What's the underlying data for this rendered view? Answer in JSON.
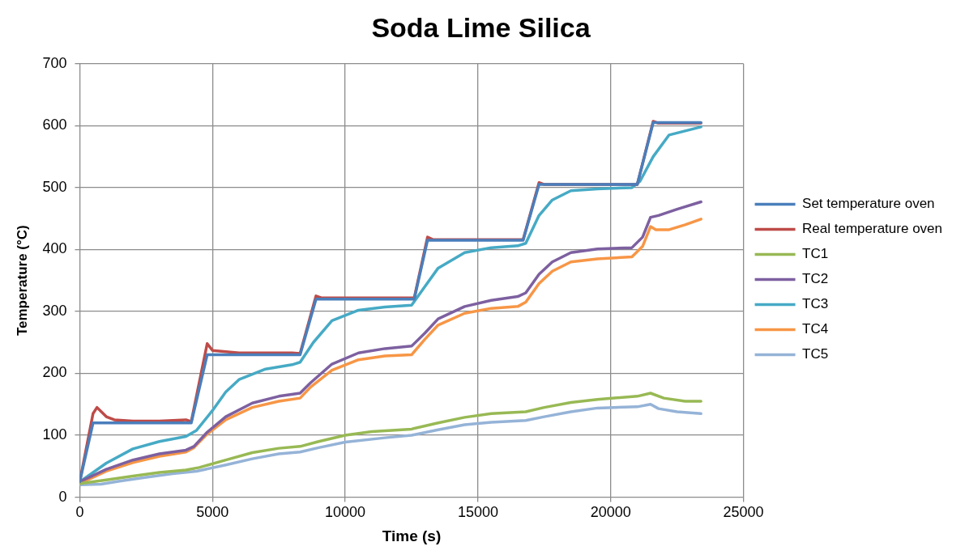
{
  "chart_data": {
    "type": "line",
    "title": "Soda Lime Silica",
    "xlabel": "Time (s)",
    "ylabel": "Temperature (°C)",
    "xlim": [
      0,
      25000
    ],
    "xticks": [
      0,
      5000,
      10000,
      15000,
      20000,
      25000
    ],
    "ylim": [
      0,
      700
    ],
    "yticks": [
      0,
      100,
      200,
      300,
      400,
      500,
      600,
      700
    ],
    "grid": true,
    "legend": "right",
    "marker": "none",
    "line_style": "solid",
    "series": [
      {
        "name": "Set temperature oven",
        "color": "#4a7ebb",
        "x": [
          0,
          500,
          4200,
          4800,
          8300,
          8900,
          12600,
          13100,
          16700,
          17300,
          21000,
          21600,
          23400
        ],
        "values": [
          25,
          120,
          120,
          230,
          230,
          320,
          320,
          415,
          415,
          505,
          505,
          605,
          605
        ]
      },
      {
        "name": "Real temperature oven",
        "color": "#be4b48",
        "x": [
          0,
          500,
          650,
          1000,
          1300,
          2000,
          3000,
          4000,
          4200,
          4800,
          5000,
          6000,
          8000,
          8300,
          8900,
          9100,
          12600,
          13100,
          13300,
          16700,
          17300,
          17500,
          21000,
          21600,
          21800,
          23400
        ],
        "values": [
          25,
          135,
          145,
          130,
          125,
          123,
          123,
          125,
          122,
          248,
          237,
          233,
          233,
          232,
          325,
          322,
          322,
          420,
          416,
          416,
          508,
          505,
          505,
          607,
          604,
          604
        ]
      },
      {
        "name": "TC1",
        "color": "#98b954",
        "x": [
          0,
          1000,
          2000,
          3000,
          4000,
          4500,
          5500,
          6500,
          7500,
          8300,
          9000,
          10000,
          11000,
          12500,
          13500,
          14500,
          15500,
          16800,
          17500,
          18500,
          19500,
          21000,
          21500,
          22000,
          22800,
          23400
        ],
        "values": [
          22,
          28,
          34,
          40,
          44,
          48,
          60,
          72,
          79,
          82,
          90,
          100,
          106,
          110,
          120,
          129,
          135,
          138,
          145,
          153,
          158,
          163,
          168,
          160,
          155,
          155
        ]
      },
      {
        "name": "TC2",
        "color": "#7d60a0",
        "x": [
          0,
          1000,
          2000,
          3000,
          4000,
          4300,
          4800,
          5500,
          6500,
          7500,
          8300,
          8700,
          9500,
          10500,
          11500,
          12500,
          13000,
          13500,
          14500,
          15500,
          16500,
          16800,
          17300,
          17800,
          18500,
          19500,
          20800,
          21200,
          21500,
          21800,
          22500,
          23400
        ],
        "values": [
          25,
          45,
          60,
          70,
          76,
          82,
          105,
          130,
          152,
          163,
          168,
          185,
          215,
          233,
          240,
          244,
          265,
          288,
          308,
          318,
          324,
          330,
          360,
          380,
          395,
          401,
          403,
          420,
          452,
          455,
          465,
          477
        ]
      },
      {
        "name": "TC3",
        "color": "#46aac5",
        "x": [
          0,
          1000,
          2000,
          3000,
          4000,
          4400,
          5000,
          5500,
          6000,
          7000,
          8000,
          8300,
          8800,
          9500,
          10500,
          11500,
          12500,
          13000,
          13500,
          14500,
          15500,
          16500,
          16800,
          17300,
          17800,
          18500,
          19500,
          20800,
          21100,
          21600,
          22200,
          23400
        ],
        "values": [
          25,
          55,
          78,
          90,
          98,
          108,
          140,
          170,
          190,
          207,
          214,
          218,
          250,
          285,
          302,
          307,
          310,
          340,
          370,
          395,
          403,
          406,
          410,
          455,
          480,
          495,
          498,
          500,
          510,
          550,
          585,
          598
        ]
      },
      {
        "name": "TC4",
        "color": "#f79646",
        "x": [
          0,
          1000,
          2000,
          3000,
          4000,
          4300,
          4800,
          5500,
          6500,
          7500,
          8300,
          8700,
          9500,
          10500,
          11500,
          12500,
          13000,
          13500,
          14500,
          15500,
          16500,
          16800,
          17300,
          17800,
          18500,
          19500,
          20800,
          21200,
          21500,
          21700,
          22200,
          22800,
          23400
        ],
        "values": [
          22,
          42,
          56,
          66,
          73,
          80,
          102,
          125,
          145,
          155,
          160,
          178,
          205,
          222,
          228,
          230,
          255,
          278,
          297,
          305,
          308,
          315,
          345,
          365,
          380,
          385,
          388,
          405,
          437,
          432,
          432,
          440,
          449
        ]
      },
      {
        "name": "TC5",
        "color": "#95b3d7",
        "x": [
          0,
          800,
          1500,
          2500,
          3500,
          4400,
          5500,
          6500,
          7500,
          8300,
          9000,
          10000,
          11500,
          12500,
          13500,
          14500,
          15500,
          16800,
          17500,
          18500,
          19500,
          21000,
          21500,
          21800,
          22500,
          23400
        ],
        "values": [
          20,
          21,
          26,
          32,
          38,
          42,
          52,
          62,
          70,
          73,
          80,
          89,
          96,
          100,
          109,
          117,
          121,
          124,
          130,
          138,
          144,
          146,
          150,
          143,
          138,
          135
        ]
      }
    ]
  }
}
